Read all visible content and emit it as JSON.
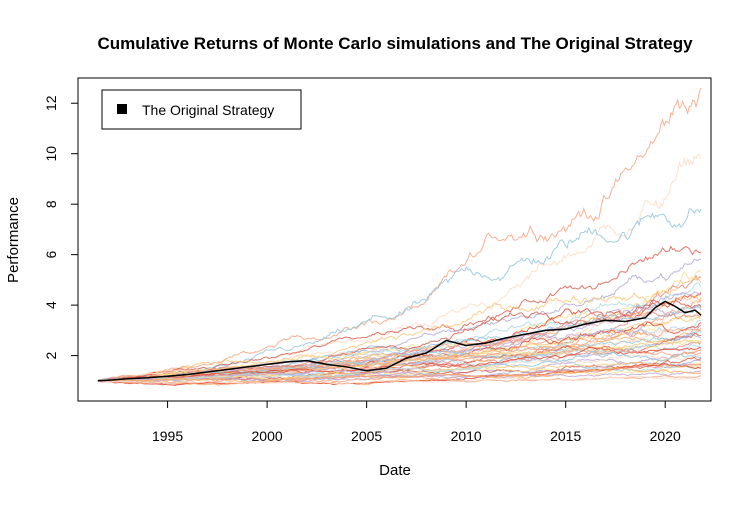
{
  "chart_data": {
    "type": "line",
    "title": "Cumulative Returns of Monte Carlo simulations and The Original Strategy",
    "xlabel": "Date",
    "ylabel": "Performance",
    "xlim": [
      1990.5,
      2022.3
    ],
    "ylim": [
      0.2,
      13.0
    ],
    "x_ticks": [
      1995,
      2000,
      2005,
      2010,
      2015,
      2020
    ],
    "y_ticks": [
      2,
      4,
      6,
      8,
      10,
      12
    ],
    "grid": false,
    "legend": {
      "position": "top-left",
      "entries": [
        "The Original Strategy"
      ]
    },
    "original_strategy": {
      "name": "The Original Strategy",
      "color": "#000000",
      "x": [
        1991.5,
        1992,
        1993,
        1994,
        1995,
        1996,
        1997,
        1998,
        1999,
        2000,
        2001,
        2002,
        2003,
        2004,
        2005,
        2006,
        2007,
        2008,
        2009,
        2010,
        2011,
        2012,
        2013,
        2014,
        2015,
        2016,
        2017,
        2018,
        2019,
        2019.5,
        2020,
        2020.5,
        2021,
        2021.5,
        2021.8
      ],
      "y": [
        1.0,
        1.02,
        1.08,
        1.12,
        1.18,
        1.25,
        1.35,
        1.45,
        1.55,
        1.65,
        1.75,
        1.8,
        1.65,
        1.55,
        1.4,
        1.5,
        1.9,
        2.1,
        2.6,
        2.4,
        2.5,
        2.7,
        2.85,
        3.0,
        3.05,
        3.25,
        3.4,
        3.35,
        3.5,
        3.9,
        4.15,
        3.95,
        3.7,
        3.8,
        3.6
      ]
    },
    "simulations": {
      "count": 50,
      "x_start": 1991.5,
      "x_end": 2021.8,
      "y_start": 1.0,
      "final_values": [
        12.6,
        9.8,
        7.8,
        6.1,
        5.8,
        5.4,
        5.1,
        4.9,
        4.7,
        4.5,
        4.4,
        4.3,
        4.2,
        4.1,
        4.0,
        3.9,
        3.8,
        3.7,
        3.6,
        3.5,
        3.4,
        3.3,
        3.2,
        3.1,
        3.0,
        2.95,
        2.9,
        2.8,
        2.7,
        2.6,
        2.55,
        2.5,
        2.4,
        2.3,
        2.25,
        2.2,
        2.1,
        2.0,
        1.95,
        1.9,
        1.8,
        1.7,
        1.65,
        1.6,
        1.55,
        1.5,
        1.4,
        1.3,
        1.2,
        1.1
      ],
      "palette": [
        "#f4a582",
        "#fddbc7",
        "#92c5de",
        "#d6604d",
        "#b2abd2",
        "#fee090",
        "#e08a8a",
        "#f6c87a",
        "#abd9e9",
        "#e34a33",
        "#c2a5cf",
        "#fdae61"
      ]
    }
  }
}
